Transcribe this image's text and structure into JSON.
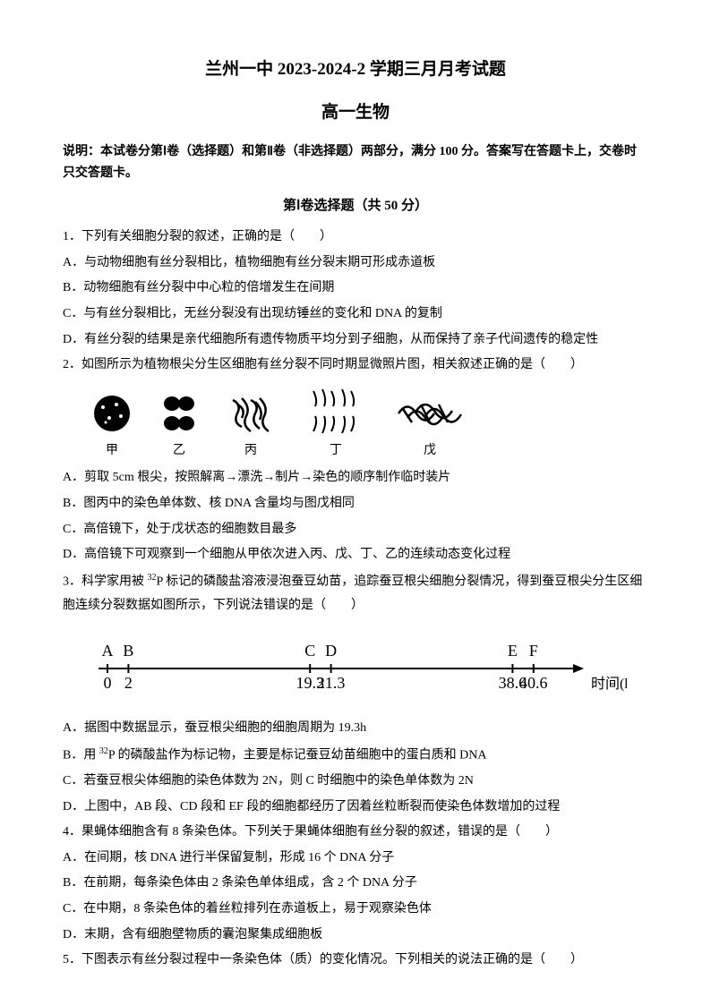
{
  "title_main": "兰州一中 2023-2024-2 学期三月月考试题",
  "title_sub": "高一生物",
  "instruction": "说明：本试卷分第Ⅰ卷（选择题）和第Ⅱ卷（非选择题）两部分，满分 100 分。答案写在答题卡上，交卷时只交答题卡。",
  "section_header": "第Ⅰ卷选择题（共 50 分）",
  "q1": {
    "text": "1．下列有关细胞分裂的叙述，正确的是（　　）",
    "a": "A．与动物细胞有丝分裂相比，植物细胞有丝分裂末期可形成赤道板",
    "b": "B．动物细胞有丝分裂中中心粒的倍增发生在间期",
    "c": "C．与有丝分裂相比，无丝分裂没有出现纺锤丝的变化和 DNA 的复制",
    "d": "D．有丝分裂的结果是亲代细胞所有遗传物质平均分到子细胞，从而保持了亲子代间遗传的稳定性"
  },
  "q2": {
    "text": "2．如图所示为植物根尖分生区细胞有丝分裂不同时期显微照片图，相关叙述正确的是（　　）",
    "labels": [
      "甲",
      "乙",
      "丙",
      "丁",
      "戊"
    ],
    "a": "A．剪取 5cm 根尖，按照解离→漂洗→制片→染色的顺序制作临时装片",
    "b": "B．图丙中的染色单体数、核 DNA 含量均与图戊相同",
    "c": "C．高倍镜下，处于戊状态的细胞数目最多",
    "d": "D．高倍镜下可观察到一个细胞从甲依次进入丙、戊、丁、乙的连续动态变化过程"
  },
  "q3": {
    "text_pre": "3．科学家用被 ",
    "text_sup": "32",
    "text_post": "P 标记的磷酸盐溶液浸泡蚕豆幼苗，追踪蚕豆根尖细胞分裂情况，得到蚕豆根尖分生区细胞连续分裂数据如图所示，下列说法错误的是（　　）",
    "timeline": {
      "letters": [
        "A",
        "B",
        "C",
        "D",
        "E",
        "F"
      ],
      "values": [
        "0",
        "2",
        "19.3",
        "21.3",
        "38.6",
        "40.6"
      ],
      "positions": [
        0,
        30,
        290,
        320,
        580,
        610
      ],
      "axis_label": "时间(h)",
      "line_color": "#000000"
    },
    "a": "A．据图中数据显示，蚕豆根尖细胞的细胞周期为 19.3h",
    "b_pre": "B．用 ",
    "b_sup": "32",
    "b_post": "P 的磷酸盐作为标记物，主要是标记蚕豆幼苗细胞中的蛋白质和 DNA",
    "c": "C．若蚕豆根尖体细胞的染色体数为 2N，则 C 时细胞中的染色单体数为 2N",
    "d": "D．上图中，AB 段、CD 段和 EF 段的细胞都经历了因着丝粒断裂而使染色体数增加的过程"
  },
  "q4": {
    "text": "4．果蝇体细胞含有 8 条染色体。下列关于果蝇体细胞有丝分裂的叙述，错误的是（　　）",
    "a": "A．在间期，核 DNA 进行半保留复制，形成 16 个 DNA 分子",
    "b": "B．在前期，每条染色体由 2 条染色单体组成，含 2 个 DNA 分子",
    "c": "C．在中期，8 条染色体的着丝粒排列在赤道板上，易于观察染色体",
    "d": "D．末期，含有细胞壁物质的囊泡聚集成细胞板"
  },
  "q5": {
    "text": "5．下图表示有丝分裂过程中一条染色体（质）的变化情况。下列相关的说法正确的是（　　）"
  }
}
